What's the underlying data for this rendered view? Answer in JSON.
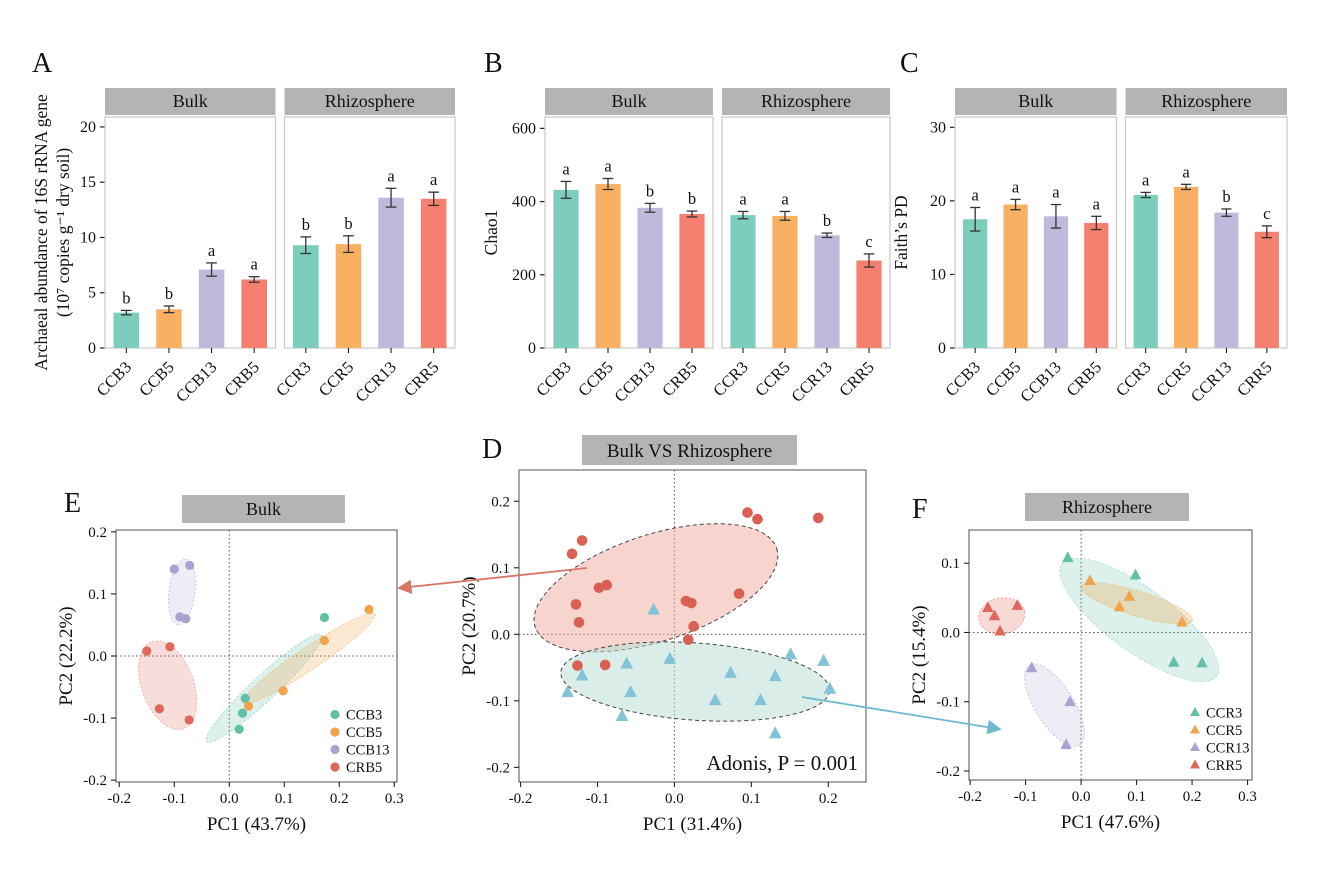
{
  "colors": {
    "strip_background": "#b4b4b4",
    "bar_panel_border": "#c9c9c9",
    "scatter_panel_border": "#6e6e6e",
    "error_bar": "#333333",
    "bar_teal": "#7ccdbb",
    "bar_orange": "#f9b062",
    "bar_purple": "#bfbadb",
    "bar_red": "#f5806f"
  },
  "connectors": [
    {
      "name": "bulk-cluster-to-panel-e-arrow",
      "color": "#d97666"
    },
    {
      "name": "rhizosphere-cluster-to-panel-f-arrow",
      "color": "#6fb9cf"
    }
  ],
  "chart_data": [
    {
      "panel": "A",
      "type": "bar",
      "ylabel_lines": [
        "Archaeal abundance of 16S rRNA gene",
        "(10⁷ copies g⁻¹ dry soil)"
      ],
      "yticks": [
        0,
        5,
        10,
        15,
        20
      ],
      "ymax_display": 20.9,
      "bar_colors": [
        "#7ccdbb",
        "#f9b062",
        "#bfbadb",
        "#f5806f"
      ],
      "facets": [
        {
          "label": "Bulk",
          "categories": [
            "CCB3",
            "CCB5",
            "CCB13",
            "CRB5"
          ],
          "values": [
            3.2,
            3.5,
            7.1,
            6.2
          ],
          "errors": [
            0.2,
            0.3,
            0.6,
            0.25
          ],
          "letters": [
            "b",
            "b",
            "a",
            "a"
          ]
        },
        {
          "label": "Rhizosphere",
          "categories": [
            "CCR3",
            "CCR5",
            "CCR13",
            "CRR5"
          ],
          "values": [
            9.3,
            9.4,
            13.6,
            13.5
          ],
          "errors": [
            0.75,
            0.75,
            0.85,
            0.6
          ],
          "letters": [
            "b",
            "b",
            "a",
            "a"
          ]
        }
      ]
    },
    {
      "panel": "B",
      "type": "bar",
      "ylabel_lines": [
        "Chao1"
      ],
      "yticks": [
        0,
        200,
        400,
        600
      ],
      "ymax_display": 631,
      "bar_colors": [
        "#7ccdbb",
        "#f9b062",
        "#bfbadb",
        "#f5806f"
      ],
      "facets": [
        {
          "label": "Bulk",
          "categories": [
            "CCB3",
            "CCB5",
            "CCB13",
            "CRB5"
          ],
          "values": [
            432,
            448,
            383,
            366
          ],
          "errors": [
            23,
            15,
            12,
            8
          ],
          "letters": [
            "a",
            "a",
            "b",
            "b"
          ]
        },
        {
          "label": "Rhizosphere",
          "categories": [
            "CCR3",
            "CCR5",
            "CCR13",
            "CRR5"
          ],
          "values": [
            363,
            361,
            308,
            239
          ],
          "errors": [
            10,
            12,
            6,
            18
          ],
          "letters": [
            "a",
            "a",
            "b",
            "c"
          ]
        }
      ]
    },
    {
      "panel": "C",
      "type": "bar",
      "ylabel_lines": [
        "Faith’s PD"
      ],
      "yticks": [
        0,
        10,
        20,
        30
      ],
      "ymax_display": 31.4,
      "bar_colors": [
        "#7ccdbb",
        "#f9b062",
        "#bfbadb",
        "#f5806f"
      ],
      "facets": [
        {
          "label": "Bulk",
          "categories": [
            "CCB3",
            "CCB5",
            "CCB13",
            "CRB5"
          ],
          "values": [
            17.5,
            19.5,
            17.9,
            17.0
          ],
          "errors": [
            1.6,
            0.7,
            1.6,
            0.9
          ],
          "letters": [
            "a",
            "a",
            "a",
            "a"
          ]
        },
        {
          "label": "Rhizosphere",
          "categories": [
            "CCR3",
            "CCR5",
            "CCR13",
            "CRR5"
          ],
          "values": [
            20.8,
            21.9,
            18.4,
            15.8
          ],
          "errors": [
            0.35,
            0.35,
            0.5,
            0.8
          ],
          "letters": [
            "a",
            "a",
            "b",
            "c"
          ]
        }
      ]
    },
    {
      "panel": "D",
      "type": "scatter",
      "title": "Bulk VS Rhizosphere",
      "xlabel": "PC1 (31.4%)",
      "ylabel": "PC2 (20.7%)",
      "annotation": "Adonis, P = 0.001",
      "xticks": [
        -0.2,
        -0.1,
        0.0,
        0.1,
        0.2
      ],
      "yticks": [
        -0.2,
        -0.1,
        0.0,
        0.1,
        0.2
      ],
      "xlim": [
        -0.202,
        0.249
      ],
      "ylim": [
        -0.222,
        0.247
      ],
      "series": [
        {
          "name": "Bulk",
          "marker": "circle",
          "size": 5.3,
          "color": "#d96052",
          "points": [
            [
              -0.12,
              0.141
            ],
            [
              -0.133,
              0.121
            ],
            [
              0.095,
              0.183
            ],
            [
              0.108,
              0.173
            ],
            [
              0.187,
              0.175
            ],
            [
              -0.098,
              0.07
            ],
            [
              -0.088,
              0.074
            ],
            [
              -0.128,
              0.045
            ],
            [
              0.015,
              0.05
            ],
            [
              0.022,
              0.047
            ],
            [
              0.084,
              0.061
            ],
            [
              -0.124,
              0.018
            ],
            [
              0.025,
              0.012
            ],
            [
              0.018,
              -0.008
            ],
            [
              -0.126,
              -0.047
            ],
            [
              -0.09,
              -0.046
            ]
          ],
          "ellipse": {
            "cx": -0.024,
            "cy": 0.07,
            "rx": 0.165,
            "ry": 0.08,
            "angle": 18,
            "fill": "#efa99c",
            "fill_opacity": 0.5,
            "stroke": "#444444",
            "stroke_opacity": 1,
            "dash": "4,3"
          }
        },
        {
          "name": "Rhizosphere",
          "marker": "triangle",
          "size": 6,
          "color": "#83c3d8",
          "points": [
            [
              -0.027,
              0.037
            ],
            [
              -0.062,
              -0.044
            ],
            [
              -0.006,
              -0.037
            ],
            [
              -0.12,
              -0.062
            ],
            [
              -0.139,
              -0.087
            ],
            [
              -0.057,
              -0.087
            ],
            [
              0.073,
              -0.058
            ],
            [
              0.131,
              -0.063
            ],
            [
              0.151,
              -0.03
            ],
            [
              0.194,
              -0.04
            ],
            [
              0.053,
              -0.099
            ],
            [
              0.112,
              -0.099
            ],
            [
              0.202,
              -0.082
            ],
            [
              -0.068,
              -0.123
            ],
            [
              0.131,
              -0.149
            ]
          ],
          "ellipse": {
            "cx": 0.027,
            "cy": -0.071,
            "rx": 0.175,
            "ry": 0.058,
            "angle": -4,
            "fill": "#bcdfd6",
            "fill_opacity": 0.55,
            "stroke": "#444444",
            "stroke_opacity": 1,
            "dash": "4,3"
          }
        }
      ]
    },
    {
      "panel": "E",
      "type": "scatter",
      "title": "Bulk",
      "xlabel": "PC1 (43.7%)",
      "ylabel": "PC2 (22.2%)",
      "xticks": [
        -0.2,
        -0.1,
        0.0,
        0.1,
        0.2,
        0.3
      ],
      "yticks": [
        -0.2,
        -0.1,
        0.0,
        0.1,
        0.2
      ],
      "xlim": [
        -0.206,
        0.305
      ],
      "ylim": [
        -0.203,
        0.203
      ],
      "legend": true,
      "series": [
        {
          "name": "CCB3",
          "marker": "circle",
          "size": 4.6,
          "color": "#64bfa8",
          "points": [
            [
              0.173,
              0.062
            ],
            [
              0.029,
              -0.068
            ],
            [
              0.024,
              -0.092
            ],
            [
              0.018,
              -0.118
            ]
          ],
          "ellipse": {
            "cx": 0.063,
            "cy": -0.052,
            "rx": 0.142,
            "ry": 0.02,
            "angle": 43,
            "fill": "#64bfa8",
            "fill_opacity": 0.22,
            "stroke": "#64bfa8",
            "stroke_opacity": 0.5,
            "dash": "2,2"
          }
        },
        {
          "name": "CCB5",
          "marker": "circle",
          "size": 4.6,
          "color": "#efa44c",
          "points": [
            [
              0.254,
              0.075
            ],
            [
              0.173,
              0.025
            ],
            [
              0.098,
              -0.056
            ],
            [
              0.035,
              -0.081
            ]
          ],
          "ellipse": {
            "cx": 0.145,
            "cy": -0.004,
            "rx": 0.145,
            "ry": 0.018,
            "angle": 34,
            "fill": "#efa44c",
            "fill_opacity": 0.25,
            "stroke": "#efa44c",
            "stroke_opacity": 0.5,
            "dash": "2,2"
          }
        },
        {
          "name": "CCB13",
          "marker": "circle",
          "size": 4.6,
          "color": "#a9a3cf",
          "points": [
            [
              -0.1,
              0.14
            ],
            [
              -0.072,
              0.146
            ],
            [
              -0.09,
              0.063
            ],
            [
              -0.079,
              0.06
            ]
          ],
          "ellipse": {
            "cx": -0.086,
            "cy": 0.103,
            "rx": 0.06,
            "ry": 0.021,
            "angle": 83,
            "fill": "#a9a3cf",
            "fill_opacity": 0.2,
            "stroke": "#a9a3cf",
            "stroke_opacity": 0.6,
            "dash": "2,2"
          }
        },
        {
          "name": "CRB5",
          "marker": "circle",
          "size": 4.6,
          "color": "#df675b",
          "points": [
            [
              -0.15,
              0.008
            ],
            [
              -0.108,
              0.015
            ],
            [
              -0.127,
              -0.085
            ],
            [
              -0.073,
              -0.103
            ]
          ],
          "ellipse": {
            "cx": -0.112,
            "cy": -0.047,
            "rx": 0.084,
            "ry": 0.042,
            "angle": -70,
            "fill": "#df675b",
            "fill_opacity": 0.22,
            "stroke": "#df675b",
            "stroke_opacity": 0.45,
            "dash": "2,2"
          }
        }
      ]
    },
    {
      "panel": "F",
      "type": "scatter",
      "title": "Rhizosphere",
      "xlabel": "PC1 (47.6%)",
      "ylabel": "PC2 (15.4%)",
      "xticks": [
        -0.2,
        -0.1,
        0.0,
        0.1,
        0.2,
        0.3
      ],
      "yticks": [
        -0.2,
        -0.1,
        0.0,
        0.1
      ],
      "xlim": [
        -0.202,
        0.308
      ],
      "ylim": [
        -0.213,
        0.148
      ],
      "legend": true,
      "series": [
        {
          "name": "CCR3",
          "marker": "triangle",
          "size": 5.4,
          "color": "#64bfa8",
          "points": [
            [
              -0.024,
              0.108
            ],
            [
              0.098,
              0.083
            ],
            [
              0.167,
              -0.043
            ],
            [
              0.218,
              -0.044
            ]
          ],
          "ellipse": {
            "cx": 0.105,
            "cy": 0.018,
            "rx": 0.172,
            "ry": 0.046,
            "angle": -36,
            "fill": "#64bfa8",
            "fill_opacity": 0.22,
            "stroke": "#64bfa8",
            "stroke_opacity": 0.45,
            "dash": "2,2"
          }
        },
        {
          "name": "CCR5",
          "marker": "triangle",
          "size": 5.4,
          "color": "#efa44c",
          "points": [
            [
              0.016,
              0.075
            ],
            [
              0.087,
              0.052
            ],
            [
              0.069,
              0.037
            ],
            [
              0.182,
              0.015
            ]
          ],
          "ellipse": {
            "cx": 0.1,
            "cy": 0.042,
            "rx": 0.105,
            "ry": 0.018,
            "angle": -17,
            "fill": "#efa44c",
            "fill_opacity": 0.3,
            "stroke": "#efa44c",
            "stroke_opacity": 0.5,
            "dash": "2,2"
          }
        },
        {
          "name": "CCR13",
          "marker": "triangle",
          "size": 5.4,
          "color": "#a9a3cf",
          "points": [
            [
              -0.089,
              -0.051
            ],
            [
              -0.02,
              -0.1
            ],
            [
              -0.027,
              -0.162
            ]
          ],
          "ellipse": {
            "cx": -0.048,
            "cy": -0.105,
            "rx": 0.085,
            "ry": 0.028,
            "angle": -58,
            "fill": "#a9a3cf",
            "fill_opacity": 0.2,
            "stroke": "#a9a3cf",
            "stroke_opacity": 0.6,
            "dash": "2,2"
          }
        },
        {
          "name": "CRR5",
          "marker": "triangle",
          "size": 5.4,
          "color": "#df675b",
          "points": [
            [
              -0.168,
              0.036
            ],
            [
              -0.156,
              0.024
            ],
            [
              -0.115,
              0.039
            ],
            [
              -0.146,
              0.002
            ]
          ],
          "ellipse": {
            "cx": -0.143,
            "cy": 0.024,
            "rx": 0.042,
            "ry": 0.026,
            "angle": 10,
            "fill": "#df675b",
            "fill_opacity": 0.25,
            "stroke": "#df675b",
            "stroke_opacity": 0.45,
            "dash": "2,2"
          }
        }
      ]
    }
  ]
}
